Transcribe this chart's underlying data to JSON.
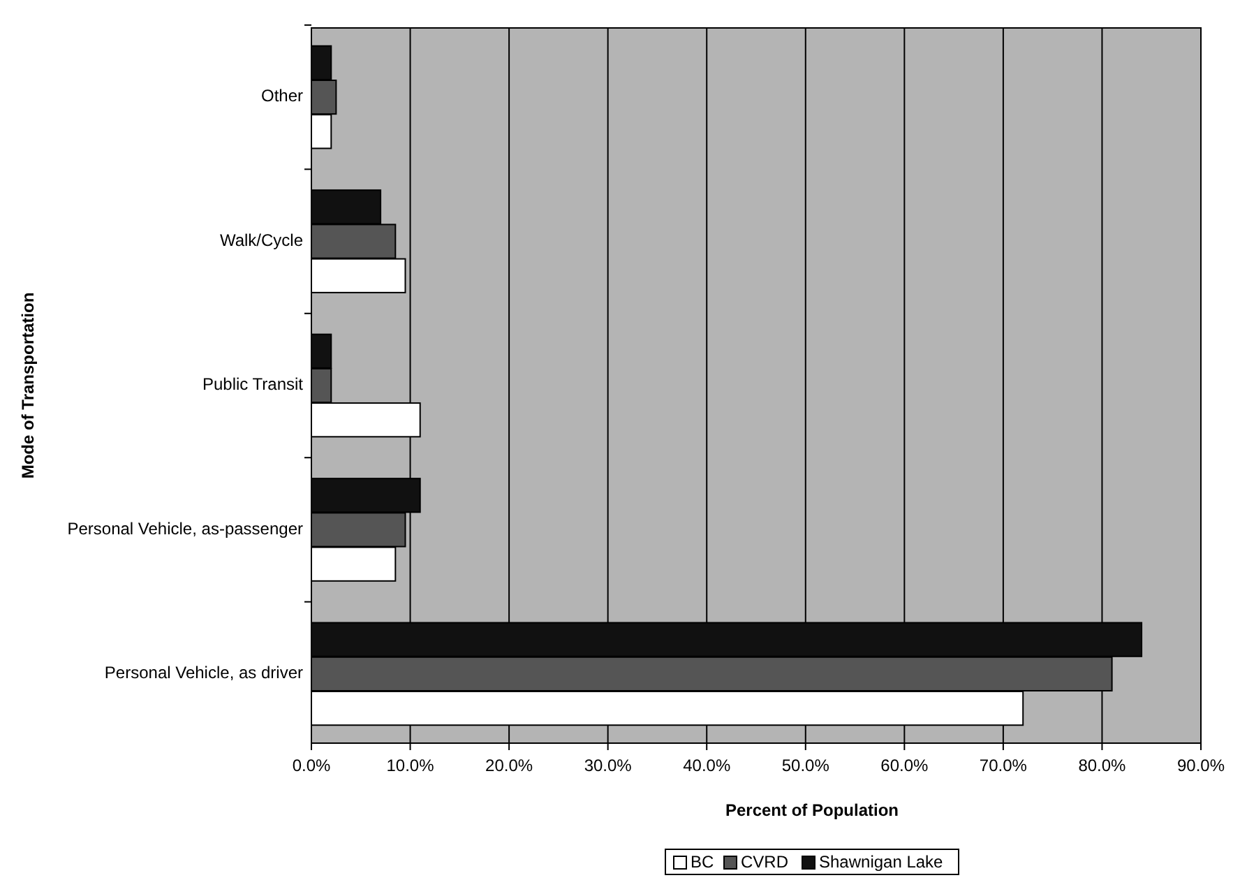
{
  "chart_data": {
    "type": "bar",
    "orientation": "horizontal",
    "xlabel": "Percent of Population",
    "ylabel": "Mode of Transportation",
    "categories": [
      "Other",
      "Walk/Cycle",
      "Public Transit",
      "Personal Vehicle, as-passenger",
      "Personal Vehicle, as driver"
    ],
    "series": [
      {
        "name": "BC",
        "color": "#ffffff",
        "values": [
          2,
          9.5,
          11,
          8.5,
          72
        ]
      },
      {
        "name": "CVRD",
        "color": "#555555",
        "values": [
          2.5,
          8.5,
          2,
          9.5,
          81
        ]
      },
      {
        "name": "Shawnigan Lake",
        "color": "#111111",
        "values": [
          2,
          7,
          2,
          11,
          84
        ]
      }
    ],
    "xlim": [
      0,
      90
    ],
    "xticks": [
      {
        "value": 0,
        "label": "0.0%"
      },
      {
        "value": 10,
        "label": "10.0%"
      },
      {
        "value": 20,
        "label": "20.0%"
      },
      {
        "value": 30,
        "label": "30.0%"
      },
      {
        "value": 40,
        "label": "40.0%"
      },
      {
        "value": 50,
        "label": "50.0%"
      },
      {
        "value": 60,
        "label": "60.0%"
      },
      {
        "value": 70,
        "label": "70.0%"
      },
      {
        "value": 80,
        "label": "80.0%"
      },
      {
        "value": 90,
        "label": "90.0%"
      }
    ],
    "grid": "x",
    "legend": "bottom"
  }
}
